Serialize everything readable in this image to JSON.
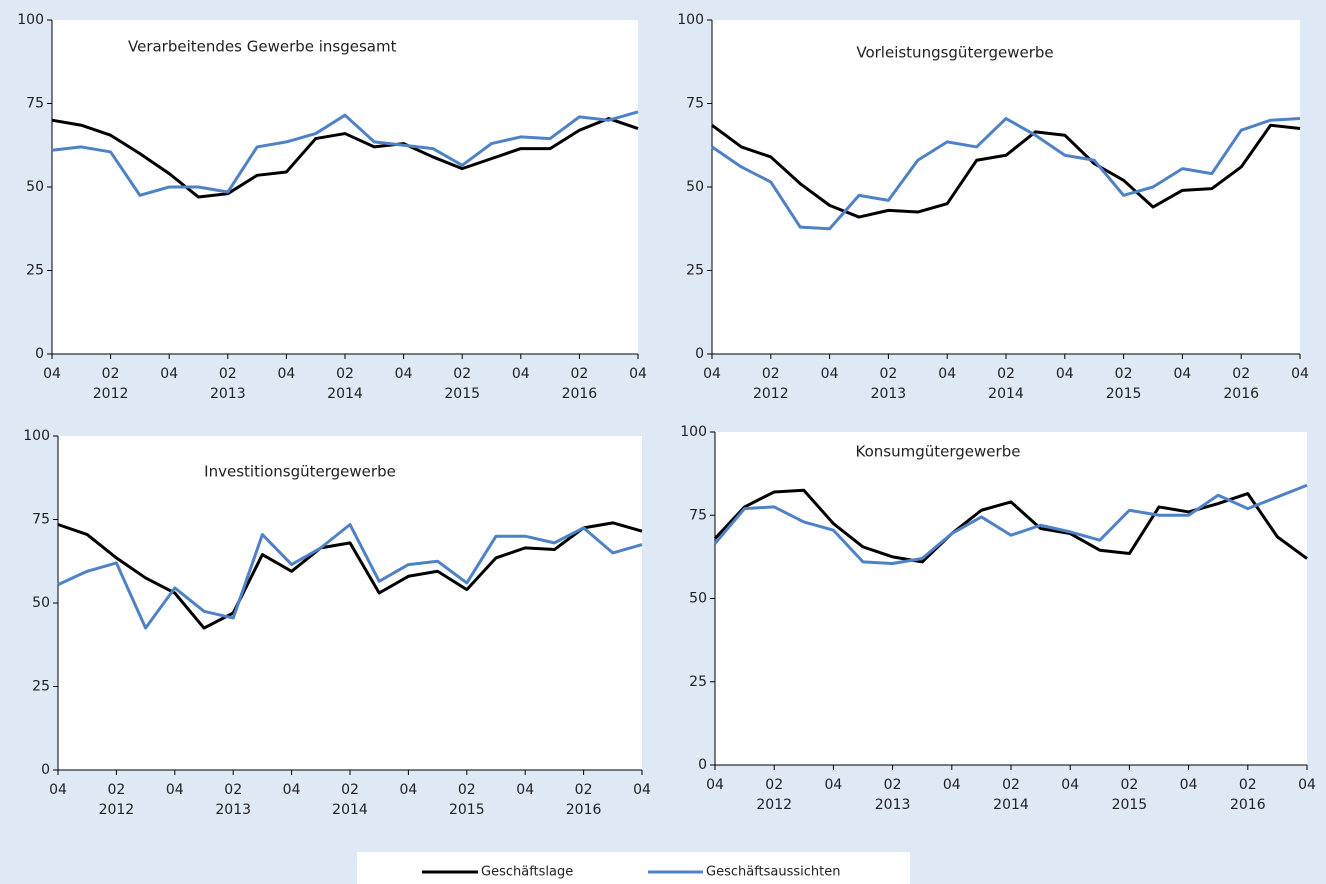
{
  "chart_data": [
    {
      "type": "line",
      "title": "Verarbeitendes Gewerbe insgesamt",
      "categories": [
        "04",
        null,
        "02",
        null,
        "04",
        null,
        "02",
        null,
        "04",
        null,
        "02",
        null,
        "04",
        null,
        "02",
        null,
        "04",
        null,
        "02",
        null,
        "04"
      ],
      "year_labels": [
        null,
        null,
        "2012",
        null,
        null,
        null,
        "2013",
        null,
        null,
        null,
        "2014",
        null,
        null,
        null,
        "2015",
        null,
        null,
        null,
        "2016",
        null,
        null
      ],
      "ylim": [
        0,
        100
      ],
      "yticks": [
        0,
        25,
        50,
        75,
        100
      ],
      "series": [
        {
          "values": [
            70,
            68.5,
            65.5,
            60,
            54,
            47,
            48,
            53.5,
            54.5,
            64.5,
            66,
            62,
            63,
            59,
            55.5,
            58.5,
            61.5,
            61.5,
            67,
            70.5,
            67.5
          ]
        },
        {
          "values": [
            61,
            62,
            60.5,
            47.5,
            50,
            50,
            48.5,
            62,
            63.5,
            66,
            71.5,
            63.5,
            62.5,
            61.5,
            56.5,
            63,
            65,
            64.5,
            71,
            70,
            72.5
          ]
        }
      ]
    },
    {
      "type": "line",
      "title": "Vorleistungsgütergewerbe",
      "categories": [
        "04",
        null,
        "02",
        null,
        "04",
        null,
        "02",
        null,
        "04",
        null,
        "02",
        null,
        "04",
        null,
        "02",
        null,
        "04",
        null,
        "02",
        null,
        "04"
      ],
      "year_labels": [
        null,
        null,
        "2012",
        null,
        null,
        null,
        "2013",
        null,
        null,
        null,
        "2014",
        null,
        null,
        null,
        "2015",
        null,
        null,
        null,
        "2016",
        null,
        null
      ],
      "ylim": [
        0,
        100
      ],
      "yticks": [
        0,
        25,
        50,
        75,
        100
      ],
      "series": [
        {
          "values": [
            68.5,
            62,
            59,
            51,
            44.5,
            41,
            43,
            42.5,
            45,
            58,
            59.5,
            66.5,
            65.5,
            57,
            52,
            44,
            49,
            49.5,
            56,
            68.5,
            67.5
          ]
        },
        {
          "values": [
            62,
            56,
            51.5,
            38,
            37.5,
            47.5,
            46,
            58,
            63.5,
            62,
            70.5,
            65.5,
            59.5,
            58,
            47.5,
            50,
            55.5,
            54,
            67,
            70,
            70.5
          ]
        }
      ]
    },
    {
      "type": "line",
      "title": "Investitionsgütergewerbe",
      "categories": [
        "04",
        null,
        "02",
        null,
        "04",
        null,
        "02",
        null,
        "04",
        null,
        "02",
        null,
        "04",
        null,
        "02",
        null,
        "04",
        null,
        "02",
        null,
        "04"
      ],
      "year_labels": [
        null,
        null,
        "2012",
        null,
        null,
        null,
        "2013",
        null,
        null,
        null,
        "2014",
        null,
        null,
        null,
        "2015",
        null,
        null,
        null,
        "2016",
        null,
        null
      ],
      "ylim": [
        0,
        100
      ],
      "yticks": [
        0,
        25,
        50,
        75,
        100
      ],
      "series": [
        {
          "values": [
            73.5,
            70.5,
            63.5,
            57.5,
            53,
            42.5,
            47,
            64.5,
            59.5,
            66.5,
            68,
            53,
            58,
            59.5,
            54,
            63.5,
            66.5,
            66,
            72.5,
            74,
            71.5
          ]
        },
        {
          "values": [
            55.5,
            59.5,
            62,
            42.5,
            54.5,
            47.5,
            45.5,
            70.5,
            61.5,
            66.5,
            73.5,
            56.5,
            61.5,
            62.5,
            56,
            70,
            70,
            68,
            72.5,
            65,
            67.5
          ]
        }
      ]
    },
    {
      "type": "line",
      "title": "Konsumgütergewerbe",
      "categories": [
        "04",
        null,
        "02",
        null,
        "04",
        null,
        "02",
        null,
        "04",
        null,
        "02",
        null,
        "04",
        null,
        "02",
        null,
        "04",
        null,
        "02",
        null,
        "04"
      ],
      "year_labels": [
        null,
        null,
        "2012",
        null,
        null,
        null,
        "2013",
        null,
        null,
        null,
        "2014",
        null,
        null,
        null,
        "2015",
        null,
        null,
        null,
        "2016",
        null,
        null
      ],
      "ylim": [
        0,
        100
      ],
      "yticks": [
        0,
        25,
        50,
        75,
        100
      ],
      "series": [
        {
          "values": [
            68,
            77.5,
            82,
            82.5,
            72.5,
            65.5,
            62.5,
            61,
            69.5,
            76.5,
            79,
            71,
            69.5,
            64.5,
            63.5,
            77.5,
            76,
            78.5,
            81.5,
            68.5,
            62
          ]
        },
        {
          "values": [
            66.5,
            77,
            77.5,
            73,
            70.5,
            61,
            60.5,
            62,
            69.5,
            74.5,
            69,
            72,
            70,
            67.5,
            76.5,
            75,
            75,
            81,
            77,
            80.5,
            84
          ]
        }
      ]
    }
  ],
  "legend": [
    {
      "name": "Geschäftslage",
      "color": "#000000"
    },
    {
      "name": "Geschäftsaussichten",
      "color": "#4f81c7"
    }
  ]
}
